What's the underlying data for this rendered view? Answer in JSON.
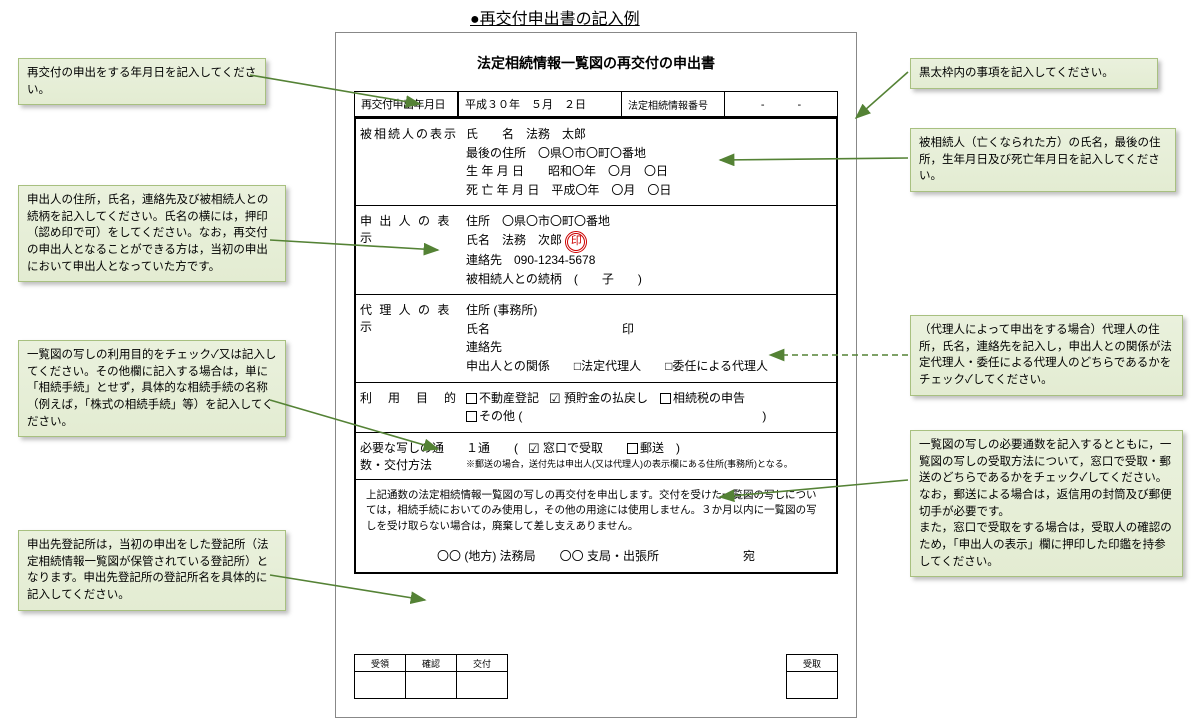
{
  "page_title": "●再交付申出書の記入例",
  "form_title": "法定相続情報一覧図の再交付の申出書",
  "top_row": {
    "label": "再交付申出年月日",
    "date": "平成３０年　５月　２日",
    "num_label": "法定相続情報番号",
    "num_value": "-　　　-"
  },
  "sections": {
    "deceased": {
      "label": "被相続人の表示",
      "body_lines": [
        "氏　　名　法務　太郎",
        "最後の住所　〇県〇市〇町〇番地",
        "生 年 月 日　　昭和〇年　〇月　〇日",
        "死 亡 年 月 日　平成〇年　〇月　〇日"
      ]
    },
    "applicant": {
      "label": "申 出 人 の 表 示",
      "body_lines": [
        "住所　〇県〇市〇町〇番地",
        "氏名　法務　次郎",
        "連絡先　090-1234-5678",
        "被相続人との続柄　(　　子　　)"
      ],
      "seal_text": "印"
    },
    "agent": {
      "label": "代 理 人 の 表 示",
      "body_lines": [
        "住所 (事務所)",
        "氏名　　　　　　　　　　　印",
        "連絡先",
        "申出人との関係　　□法定代理人　　□委任による代理人"
      ]
    },
    "purpose": {
      "label": "利　用　目　的",
      "line1_items": [
        {
          "text": "不動産登記",
          "checked": false
        },
        {
          "text": "預貯金の払戻し",
          "checked": true
        },
        {
          "text": "相続税の申告",
          "checked": false
        }
      ],
      "line2_prefix": "その他 (",
      "line2_suffix": ")"
    },
    "copies": {
      "label": "必要な写しの通数・交付方法",
      "body_main_prefix": "１通　　(　",
      "body_items": [
        {
          "text": "窓口で受取",
          "checked": true
        },
        {
          "text": "郵送",
          "checked": false
        }
      ],
      "body_main_suffix": "　)",
      "note": "※郵送の場合，送付先は申出人(又は代理人)の表示欄にある住所(事務所)となる。"
    }
  },
  "disclaim": "上記通数の法定相続情報一覧図の写しの再交付を申出します。交付を受けた一覧図の写しについては，相続手続においてのみ使用し，その他の用途には使用しません。３か月以内に一覧図の写しを受け取らない場合は，廃棄して差し支えありません。",
  "office_line": "〇〇 (地方) 法務局　　〇〇 支局・出張所　　　　　　　宛",
  "bottom_left_headers": [
    "受領",
    "確認",
    "交付"
  ],
  "bottom_right_headers": [
    "受取"
  ],
  "callouts": {
    "c1": "再交付の申出をする年月日を記入してください。",
    "c2": "申出人の住所，氏名，連絡先及び被相続人との続柄を記入してください。氏名の横には，押印（認め印で可）をしてください。なお，再交付の申出人となることができる方は，当初の申出において申出人となっていた方です。",
    "c3": "一覧図の写しの利用目的をチェック✓又は記入してください。その他欄に記入する場合は，単に「相続手続」とせず，具体的な相続手続の名称（例えば，「株式の相続手続」等）を記入してください。",
    "c4": "申出先登記所は，当初の申出をした登記所（法定相続情報一覧図が保管されている登記所）となります。申出先登記所の登記所名を具体的に記入してください。",
    "c5": "黒太枠内の事項を記入してください。",
    "c6": "被相続人（亡くなられた方）の氏名，最後の住所，生年月日及び死亡年月日を記入してください。",
    "c7": "（代理人によって申出をする場合）代理人の住所，氏名，連絡先を記入し，申出人との関係が法定代理人・委任による代理人のどちらであるかをチェック✓してください。",
    "c8": "一覧図の写しの必要通数を記入するとともに，一覧図の写しの受取方法について，窓口で受取・郵送のどちらであるかをチェック✓してください。\nなお，郵送による場合は，返信用の封筒及び郵便切手が必要です。\nまた，窓口で受取をする場合は，受取人の確認のため，「申出人の表示」欄に押印した印鑑を持参してください。"
  },
  "colors": {
    "callout_bg": "#e6efd7",
    "callout_border": "#a8c080",
    "arrow": "#548235",
    "seal": "#c00000"
  }
}
